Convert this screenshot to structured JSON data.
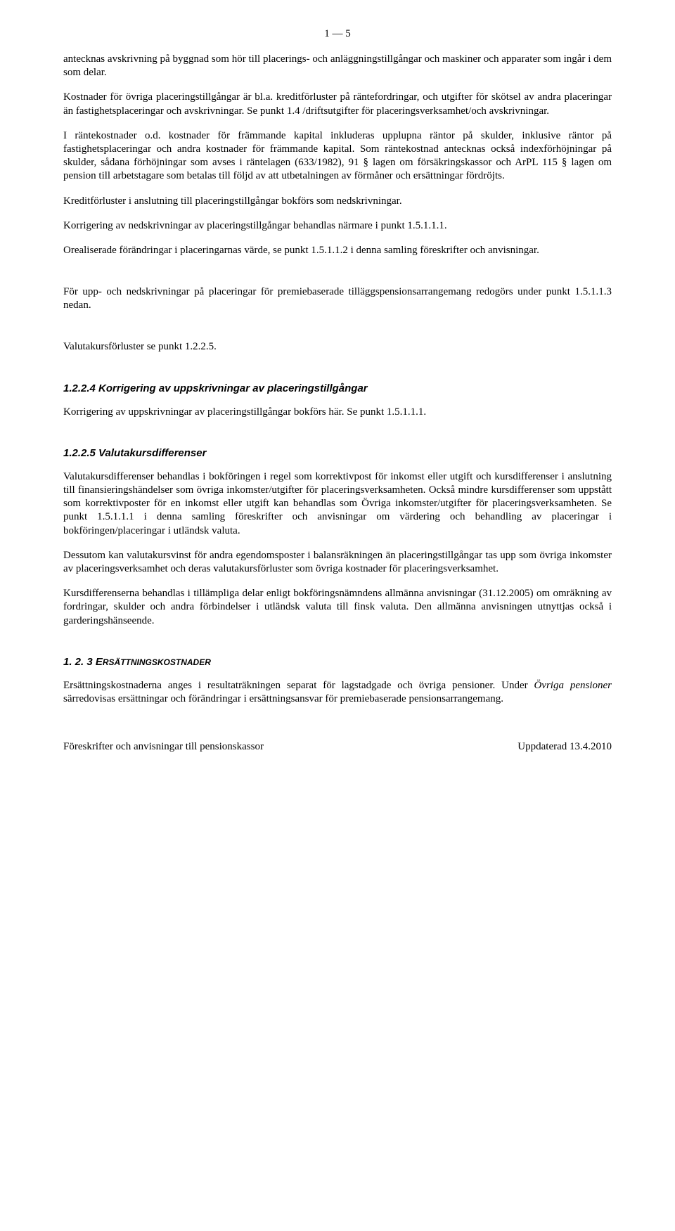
{
  "page_number": "1 — 5",
  "paragraphs": {
    "p1": "antecknas avskrivning på byggnad som hör till placerings- och anläggningstillgångar och maskiner och apparater som ingår i dem som delar.",
    "p2": "Kostnader för övriga placeringstillgångar är bl.a. kreditförluster på räntefordringar, och utgifter för skötsel av andra placeringar än fastighetsplaceringar och avskrivningar. Se punkt 1.4 /driftsutgifter för placeringsverksamhet/och avskrivningar.",
    "p3": "I räntekostnader o.d. kostnader för främmande kapital inkluderas upplupna räntor på skulder, inklusive räntor på fastighetsplaceringar och andra kostnader för främmande kapital. Som räntekostnad antecknas också indexförhöjningar på skulder, sådana förhöjningar som avses i räntelagen (633/1982), 91 § lagen om försäkringskassor och ArPL 115 § lagen om pension till arbetstagare som betalas till följd av att utbetalningen av förmåner och ersättningar fördröjts.",
    "p4": "Kreditförluster i anslutning till placeringstillgångar bokförs som nedskrivningar.",
    "p5": "Korrigering av nedskrivningar av placeringstillgångar behandlas närmare i punkt 1.5.1.1.1.",
    "p6": "Orealiserade förändringar i placeringarnas värde, se punkt 1.5.1.1.2 i denna samling föreskrifter och anvisningar.",
    "p7": "För upp- och nedskrivningar på placeringar för premiebaserade tilläggspensionsarrangemang redogörs under punkt 1.5.1.1.3 nedan.",
    "p8": "Valutakursförluster se punkt 1.2.2.5."
  },
  "section_1224": {
    "heading": "1.2.2.4 Korrigering av uppskrivningar av placeringstillgångar",
    "body": "Korrigering av uppskrivningar av placeringstillgångar bokförs här. Se punkt 1.5.1.1.1."
  },
  "section_1225": {
    "heading": "1.2.2.5 Valutakursdifferenser",
    "body1": "Valutakursdifferenser behandlas i bokföringen i regel som korrektivpost för inkomst eller utgift och kursdifferenser i anslutning till finansieringshändelser som övriga inkomster/utgifter för placeringsverksamheten. Också mindre kursdifferenser som uppstått som korrektivposter för en inkomst eller utgift kan behandlas som Övriga inkomster/utgifter för placeringsverksamheten. Se punkt 1.5.1.1.1 i denna samling föreskrifter och anvisningar om värdering och behandling av placeringar i bokföringen/placeringar i utländsk valuta.",
    "body2": "Dessutom kan valutakursvinst för andra egendomsposter i balansräkningen än placeringstillgångar tas upp som övriga inkomster av placeringsverksamhet och deras valutakursförluster som övriga kostnader för placeringsverksamhet.",
    "body3": "Kursdifferenserna behandlas i tillämpliga delar enligt bokföringsnämndens allmänna anvisningar (31.12.2005) om omräkning av fordringar, skulder och andra förbindelser i utländsk valuta till finsk valuta. Den allmänna anvisningen utnyttjas också i garderingshänseende."
  },
  "section_123": {
    "heading_prefix": "1. 2. 3 E",
    "heading_rest": "RSÄTTNINGSKOSTNADER",
    "body_plain": "Ersättningskostnaderna anges i resultaträkningen separat för lagstadgade och övriga pensioner. Under ",
    "body_italic": "Övriga pensioner",
    "body_after": " särredovisas ersättningar och förändringar i ersättningsansvar för premiebaserade pensionsarrangemang."
  },
  "footer": {
    "left": "Föreskrifter och anvisningar till pensionskassor",
    "right": "Uppdaterad 13.4.2010"
  },
  "colors": {
    "text": "#000000",
    "background": "#ffffff"
  },
  "typography": {
    "body_font": "Times New Roman",
    "heading_font": "Arial",
    "body_size_pt": 11,
    "heading_size_pt": 11
  }
}
